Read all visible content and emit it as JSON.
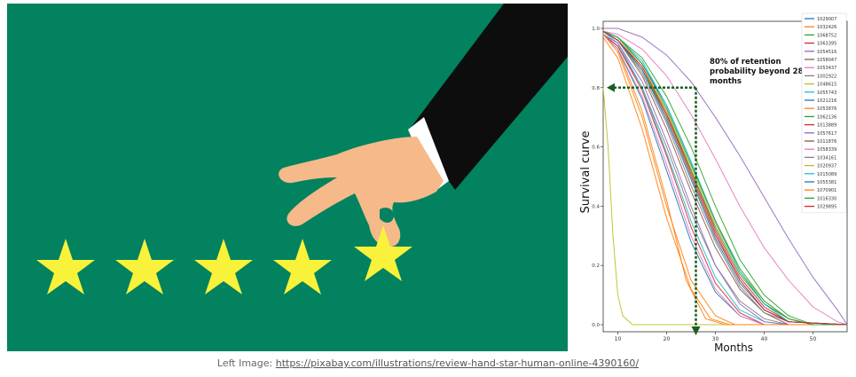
{
  "illustration": {
    "background": "#02825f",
    "star_color": "#f8f23a",
    "star_count": 5,
    "icon": "hand-holding-star-icon"
  },
  "caption": {
    "prefix": "Left Image: ",
    "link_text": "https://pixabay.com/illustrations/review-hand-star-human-online-4390160/"
  },
  "chart_data": {
    "type": "line",
    "title": "",
    "xlabel": "Months",
    "ylabel": "Survival curve",
    "xlim": [
      7,
      57
    ],
    "ylim": [
      0,
      1
    ],
    "xticks": [
      10,
      20,
      30,
      40,
      50
    ],
    "yticks": [
      "0.0",
      "0.2",
      "0.4",
      "0.6",
      "0.8",
      "1.0"
    ],
    "legend_position": "top-right",
    "annotation": {
      "text_lines": [
        "80% of retention",
        "probability beyond 28",
        "months"
      ],
      "point": [
        26,
        0.8
      ],
      "arrow_color": "#1b5e20"
    },
    "series": [
      {
        "name": "1029007",
        "color": "#1f77b4",
        "points": [
          [
            7,
            0.99
          ],
          [
            10,
            0.97
          ],
          [
            15,
            0.88
          ],
          [
            20,
            0.74
          ],
          [
            25,
            0.55
          ],
          [
            30,
            0.35
          ],
          [
            35,
            0.18
          ],
          [
            40,
            0.07
          ],
          [
            45,
            0.02
          ],
          [
            50,
            0.0
          ],
          [
            57,
            0.0
          ]
        ]
      },
      {
        "name": "1032426",
        "color": "#ff7f0e",
        "points": [
          [
            7,
            0.98
          ],
          [
            10,
            0.93
          ],
          [
            15,
            0.72
          ],
          [
            20,
            0.42
          ],
          [
            24,
            0.15
          ],
          [
            28,
            0.02
          ],
          [
            32,
            0.0
          ],
          [
            57,
            0.0
          ]
        ]
      },
      {
        "name": "1068752",
        "color": "#2ca02c",
        "points": [
          [
            7,
            0.99
          ],
          [
            10,
            0.97
          ],
          [
            15,
            0.9
          ],
          [
            20,
            0.77
          ],
          [
            25,
            0.6
          ],
          [
            30,
            0.4
          ],
          [
            35,
            0.22
          ],
          [
            40,
            0.1
          ],
          [
            45,
            0.03
          ],
          [
            50,
            0.0
          ],
          [
            57,
            0.0
          ]
        ]
      },
      {
        "name": "1063395",
        "color": "#d62728",
        "points": [
          [
            7,
            0.99
          ],
          [
            10,
            0.96
          ],
          [
            15,
            0.87
          ],
          [
            20,
            0.72
          ],
          [
            25,
            0.52
          ],
          [
            30,
            0.32
          ],
          [
            35,
            0.16
          ],
          [
            40,
            0.06
          ],
          [
            45,
            0.01
          ],
          [
            57,
            0.0
          ]
        ]
      },
      {
        "name": "1054516",
        "color": "#9467bd",
        "points": [
          [
            7,
            1.0
          ],
          [
            10,
            1.0
          ],
          [
            15,
            0.97
          ],
          [
            20,
            0.91
          ],
          [
            25,
            0.82
          ],
          [
            30,
            0.7
          ],
          [
            35,
            0.57
          ],
          [
            40,
            0.43
          ],
          [
            45,
            0.29
          ],
          [
            50,
            0.16
          ],
          [
            55,
            0.05
          ],
          [
            57,
            0.0
          ]
        ]
      },
      {
        "name": "1058047",
        "color": "#8c564b",
        "points": [
          [
            7,
            0.99
          ],
          [
            10,
            0.96
          ],
          [
            15,
            0.86
          ],
          [
            20,
            0.7
          ],
          [
            25,
            0.5
          ],
          [
            30,
            0.3
          ],
          [
            35,
            0.15
          ],
          [
            40,
            0.05
          ],
          [
            45,
            0.01
          ],
          [
            57,
            0.0
          ]
        ]
      },
      {
        "name": "1053437",
        "color": "#e377c2",
        "points": [
          [
            7,
            0.99
          ],
          [
            10,
            0.98
          ],
          [
            15,
            0.93
          ],
          [
            20,
            0.84
          ],
          [
            25,
            0.71
          ],
          [
            30,
            0.56
          ],
          [
            35,
            0.4
          ],
          [
            40,
            0.26
          ],
          [
            45,
            0.15
          ],
          [
            50,
            0.06
          ],
          [
            55,
            0.01
          ],
          [
            57,
            0.0
          ]
        ]
      },
      {
        "name": "1002922",
        "color": "#7f7f7f",
        "points": [
          [
            7,
            0.98
          ],
          [
            10,
            0.94
          ],
          [
            15,
            0.8
          ],
          [
            20,
            0.6
          ],
          [
            25,
            0.38
          ],
          [
            30,
            0.2
          ],
          [
            35,
            0.08
          ],
          [
            40,
            0.02
          ],
          [
            45,
            0.0
          ],
          [
            57,
            0.0
          ]
        ]
      },
      {
        "name": "1048615",
        "color": "#bcbd22",
        "points": [
          [
            7,
            0.8
          ],
          [
            8,
            0.6
          ],
          [
            9,
            0.3
          ],
          [
            10,
            0.1
          ],
          [
            11,
            0.03
          ],
          [
            13,
            0.0
          ],
          [
            57,
            0.0
          ]
        ]
      },
      {
        "name": "1055743",
        "color": "#17becf",
        "points": [
          [
            7,
            0.99
          ],
          [
            10,
            0.95
          ],
          [
            15,
            0.8
          ],
          [
            20,
            0.58
          ],
          [
            25,
            0.35
          ],
          [
            30,
            0.16
          ],
          [
            35,
            0.05
          ],
          [
            40,
            0.01
          ],
          [
            45,
            0.0
          ],
          [
            57,
            0.0
          ]
        ]
      },
      {
        "name": "1021216",
        "color": "#1f77b4",
        "points": [
          [
            7,
            0.98
          ],
          [
            10,
            0.93
          ],
          [
            15,
            0.76
          ],
          [
            20,
            0.52
          ],
          [
            25,
            0.28
          ],
          [
            30,
            0.11
          ],
          [
            35,
            0.03
          ],
          [
            40,
            0.0
          ],
          [
            57,
            0.0
          ]
        ]
      },
      {
        "name": "1053876",
        "color": "#ff7f0e",
        "points": [
          [
            7,
            0.97
          ],
          [
            10,
            0.9
          ],
          [
            15,
            0.66
          ],
          [
            20,
            0.36
          ],
          [
            25,
            0.12
          ],
          [
            29,
            0.02
          ],
          [
            33,
            0.0
          ],
          [
            57,
            0.0
          ]
        ]
      },
      {
        "name": "1062136",
        "color": "#2ca02c",
        "points": [
          [
            7,
            0.99
          ],
          [
            10,
            0.96
          ],
          [
            15,
            0.86
          ],
          [
            20,
            0.71
          ],
          [
            25,
            0.52
          ],
          [
            30,
            0.33
          ],
          [
            35,
            0.17
          ],
          [
            40,
            0.07
          ],
          [
            45,
            0.02
          ],
          [
            50,
            0.0
          ],
          [
            57,
            0.0
          ]
        ]
      },
      {
        "name": "1013889",
        "color": "#d62728",
        "points": [
          [
            7,
            0.98
          ],
          [
            10,
            0.94
          ],
          [
            15,
            0.79
          ],
          [
            20,
            0.57
          ],
          [
            25,
            0.33
          ],
          [
            30,
            0.14
          ],
          [
            35,
            0.04
          ],
          [
            40,
            0.0
          ],
          [
            57,
            0.0
          ]
        ]
      },
      {
        "name": "1057617",
        "color": "#9467bd",
        "points": [
          [
            7,
            0.98
          ],
          [
            10,
            0.95
          ],
          [
            15,
            0.82
          ],
          [
            20,
            0.62
          ],
          [
            25,
            0.4
          ],
          [
            30,
            0.2
          ],
          [
            35,
            0.07
          ],
          [
            40,
            0.01
          ],
          [
            45,
            0.0
          ],
          [
            57,
            0.0
          ]
        ]
      },
      {
        "name": "1011876",
        "color": "#8c564b",
        "points": [
          [
            7,
            0.99
          ],
          [
            10,
            0.96
          ],
          [
            15,
            0.84
          ],
          [
            20,
            0.66
          ],
          [
            25,
            0.45
          ],
          [
            30,
            0.26
          ],
          [
            35,
            0.12
          ],
          [
            40,
            0.04
          ],
          [
            45,
            0.0
          ],
          [
            57,
            0.0
          ]
        ]
      },
      {
        "name": "1058339",
        "color": "#e377c2",
        "points": [
          [
            7,
            0.98
          ],
          [
            10,
            0.93
          ],
          [
            15,
            0.77
          ],
          [
            20,
            0.54
          ],
          [
            25,
            0.3
          ],
          [
            30,
            0.12
          ],
          [
            35,
            0.03
          ],
          [
            40,
            0.0
          ],
          [
            57,
            0.0
          ]
        ]
      },
      {
        "name": "1034161",
        "color": "#7f7f7f",
        "points": [
          [
            7,
            0.99
          ],
          [
            10,
            0.96
          ],
          [
            15,
            0.85
          ],
          [
            20,
            0.68
          ],
          [
            25,
            0.47
          ],
          [
            30,
            0.28
          ],
          [
            35,
            0.13
          ],
          [
            40,
            0.04
          ],
          [
            45,
            0.01
          ],
          [
            57,
            0.0
          ]
        ]
      },
      {
        "name": "1020937",
        "color": "#bcbd22",
        "points": [
          [
            7,
            0.99
          ],
          [
            10,
            0.97
          ],
          [
            15,
            0.87
          ],
          [
            20,
            0.72
          ],
          [
            25,
            0.53
          ],
          [
            30,
            0.34
          ],
          [
            35,
            0.18
          ],
          [
            40,
            0.08
          ],
          [
            45,
            0.02
          ],
          [
            50,
            0.0
          ],
          [
            57,
            0.0
          ]
        ]
      },
      {
        "name": "1015089",
        "color": "#17becf",
        "points": [
          [
            7,
            0.99
          ],
          [
            10,
            0.97
          ],
          [
            15,
            0.89
          ],
          [
            20,
            0.74
          ],
          [
            25,
            0.55
          ],
          [
            30,
            0.35
          ],
          [
            35,
            0.18
          ],
          [
            40,
            0.07
          ],
          [
            45,
            0.01
          ],
          [
            57,
            0.0
          ]
        ]
      },
      {
        "name": "1055381",
        "color": "#1f77b4",
        "points": [
          [
            7,
            0.99
          ],
          [
            10,
            0.96
          ],
          [
            15,
            0.86
          ],
          [
            20,
            0.69
          ],
          [
            25,
            0.49
          ],
          [
            30,
            0.29
          ],
          [
            35,
            0.14
          ],
          [
            40,
            0.05
          ],
          [
            45,
            0.01
          ],
          [
            57,
            0.0
          ]
        ]
      },
      {
        "name": "1070901",
        "color": "#ff7f0e",
        "points": [
          [
            7,
            0.98
          ],
          [
            10,
            0.92
          ],
          [
            15,
            0.7
          ],
          [
            20,
            0.4
          ],
          [
            25,
            0.15
          ],
          [
            30,
            0.03
          ],
          [
            34,
            0.0
          ],
          [
            57,
            0.0
          ]
        ]
      },
      {
        "name": "1016330",
        "color": "#2ca02c",
        "points": [
          [
            7,
            0.99
          ],
          [
            10,
            0.97
          ],
          [
            15,
            0.88
          ],
          [
            20,
            0.73
          ],
          [
            25,
            0.54
          ],
          [
            30,
            0.35
          ],
          [
            35,
            0.19
          ],
          [
            40,
            0.08
          ],
          [
            45,
            0.02
          ],
          [
            50,
            0.0
          ],
          [
            57,
            0.0
          ]
        ]
      },
      {
        "name": "1029895",
        "color": "#d62728",
        "points": [
          [
            7,
            0.99
          ],
          [
            10,
            0.96
          ],
          [
            15,
            0.87
          ],
          [
            20,
            0.71
          ],
          [
            25,
            0.51
          ],
          [
            30,
            0.31
          ],
          [
            35,
            0.15
          ],
          [
            40,
            0.05
          ],
          [
            45,
            0.01
          ],
          [
            57,
            0.0
          ]
        ]
      }
    ]
  }
}
